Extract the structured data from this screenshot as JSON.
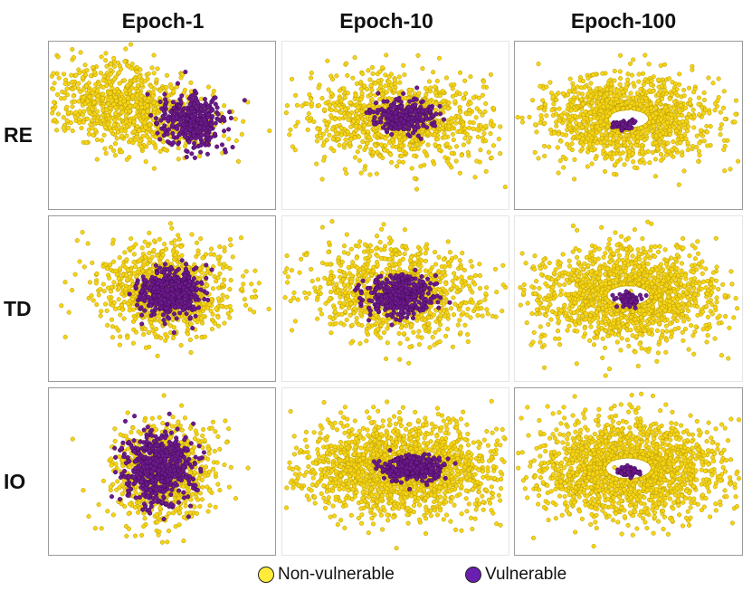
{
  "chart_data": {
    "type": "scatter",
    "description_layout": "3x3 grid of embedding scatter plots",
    "columns": [
      "Epoch-1",
      "Epoch-10",
      "Epoch-100"
    ],
    "rows": [
      "RE",
      "TD",
      "IO"
    ],
    "legend": [
      {
        "label": "Non-vulnerable",
        "color": "#f5d416"
      },
      {
        "label": "Vulnerable",
        "color": "#6d1a8c"
      }
    ],
    "panels": [
      {
        "row": "RE",
        "column": "Epoch-1",
        "non_vulnerable": {
          "center": [
            -0.4,
            0.3
          ],
          "spread": [
            0.95,
            0.55
          ],
          "count": 900,
          "tilt": -0.35
        },
        "vulnerable": {
          "center": [
            0.35,
            0.05
          ],
          "spread": [
            0.32,
            0.38
          ],
          "count": 380
        }
      },
      {
        "row": "RE",
        "column": "Epoch-10",
        "non_vulnerable": {
          "center": [
            0.0,
            0.1
          ],
          "spread": [
            1.0,
            0.6
          ],
          "count": 1000,
          "tilt": -0.15
        },
        "vulnerable": {
          "center": [
            0.1,
            0.15
          ],
          "spread": [
            0.32,
            0.22
          ],
          "count": 280
        }
      },
      {
        "row": "RE",
        "column": "Epoch-100",
        "non_vulnerable": {
          "center": [
            0.0,
            0.1
          ],
          "spread": [
            0.9,
            0.6
          ],
          "count": 1300,
          "tilt": 0.0
        },
        "vulnerable": {
          "center": [
            -0.05,
            0.0
          ],
          "spread": [
            0.1,
            0.07
          ],
          "count": 80
        }
      },
      {
        "row": "TD",
        "column": "Epoch-1",
        "non_vulnerable": {
          "center": [
            0.05,
            0.15
          ],
          "spread": [
            0.7,
            0.65
          ],
          "count": 900,
          "tilt": -0.4
        },
        "vulnerable": {
          "center": [
            0.1,
            0.1
          ],
          "spread": [
            0.32,
            0.32
          ],
          "count": 500
        }
      },
      {
        "row": "TD",
        "column": "Epoch-10",
        "non_vulnerable": {
          "center": [
            0.0,
            0.1
          ],
          "spread": [
            0.95,
            0.65
          ],
          "count": 1000,
          "tilt": -0.2
        },
        "vulnerable": {
          "center": [
            0.05,
            0.05
          ],
          "spread": [
            0.35,
            0.28
          ],
          "count": 400
        }
      },
      {
        "row": "TD",
        "column": "Epoch-100",
        "non_vulnerable": {
          "center": [
            0.0,
            0.05
          ],
          "spread": [
            0.95,
            0.65
          ],
          "count": 1500,
          "tilt": 0.0
        },
        "vulnerable": {
          "center": [
            0.0,
            0.0
          ],
          "spread": [
            0.12,
            0.1
          ],
          "count": 90
        }
      },
      {
        "row": "IO",
        "column": "Epoch-1",
        "non_vulnerable": {
          "center": [
            0.0,
            0.0
          ],
          "spread": [
            0.55,
            0.7
          ],
          "count": 800,
          "tilt": 0.0
        },
        "vulnerable": {
          "center": [
            -0.05,
            0.05
          ],
          "spread": [
            0.35,
            0.5
          ],
          "count": 600
        }
      },
      {
        "row": "IO",
        "column": "Epoch-10",
        "non_vulnerable": {
          "center": [
            0.05,
            0.05
          ],
          "spread": [
            1.0,
            0.65
          ],
          "count": 1700,
          "tilt": 0.0
        },
        "vulnerable": {
          "center": [
            0.2,
            0.05
          ],
          "spread": [
            0.3,
            0.18
          ],
          "count": 350
        }
      },
      {
        "row": "IO",
        "column": "Epoch-100",
        "non_vulnerable": {
          "center": [
            0.0,
            0.05
          ],
          "spread": [
            1.0,
            0.68
          ],
          "count": 1800,
          "tilt": 0.0
        },
        "vulnerable": {
          "center": [
            0.0,
            0.0
          ],
          "spread": [
            0.1,
            0.06
          ],
          "count": 80
        }
      }
    ]
  }
}
